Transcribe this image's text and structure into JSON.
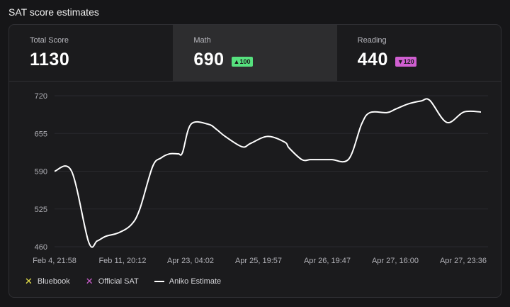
{
  "page": {
    "title": "SAT score estimates"
  },
  "stats": [
    {
      "label": "Total Score",
      "value": "1130",
      "delta": "",
      "direction": ""
    },
    {
      "label": "Math",
      "value": "690",
      "delta": "100",
      "direction": "up",
      "active": true
    },
    {
      "label": "Reading",
      "value": "440",
      "delta": "120",
      "direction": "down"
    }
  ],
  "colors": {
    "background": "#161618",
    "card": "#1b1b1d",
    "active_tab": "#2d2d2f",
    "up": "#56e17e",
    "down": "#d05fd1",
    "bluebook": "#e8e34a",
    "official": "#d05fd1",
    "line": "#ffffff"
  },
  "legend": [
    {
      "label": "Bluebook",
      "icon": "x-mark-icon",
      "color": "#e8e34a"
    },
    {
      "label": "Official SAT",
      "icon": "x-mark-icon",
      "color": "#d05fd1"
    },
    {
      "label": "Aniko Estimate",
      "icon": "line-icon",
      "color": "#ffffff"
    }
  ],
  "chart_data": {
    "type": "line",
    "title": "",
    "xlabel": "",
    "ylabel": "",
    "ylim": [
      460,
      720
    ],
    "yticks": [
      720,
      655,
      590,
      525,
      460
    ],
    "xticks": [
      "Feb 4, 21:58",
      "Feb 11, 20:12",
      "Apr 23, 04:02",
      "Apr 25, 19:57",
      "Apr 26, 19:47",
      "Apr 27, 16:00",
      "Apr 27, 23:36"
    ],
    "grid": true,
    "legend_position": "bottom-left",
    "series": [
      {
        "name": "Aniko Estimate",
        "x": [
          0,
          0.04,
          0.08,
          0.1,
          0.12,
          0.15,
          0.18,
          0.2,
          0.23,
          0.25,
          0.27,
          0.29,
          0.3,
          0.32,
          0.36,
          0.38,
          0.4,
          0.44,
          0.46,
          0.5,
          0.54,
          0.55,
          0.58,
          0.6,
          0.62,
          0.65,
          0.69,
          0.72,
          0.74,
          0.78,
          0.8,
          0.83,
          0.86,
          0.88,
          0.92,
          0.96,
          1.0
        ],
        "values": [
          590,
          590,
          468,
          470,
          478,
          484,
          498,
          525,
          598,
          613,
          620,
          620,
          622,
          671,
          671,
          662,
          650,
          632,
          638,
          650,
          640,
          630,
          610,
          610,
          610,
          610,
          611,
          671,
          691,
          691,
          697,
          706,
          711,
          712,
          674,
          692,
          692
        ]
      }
    ]
  }
}
